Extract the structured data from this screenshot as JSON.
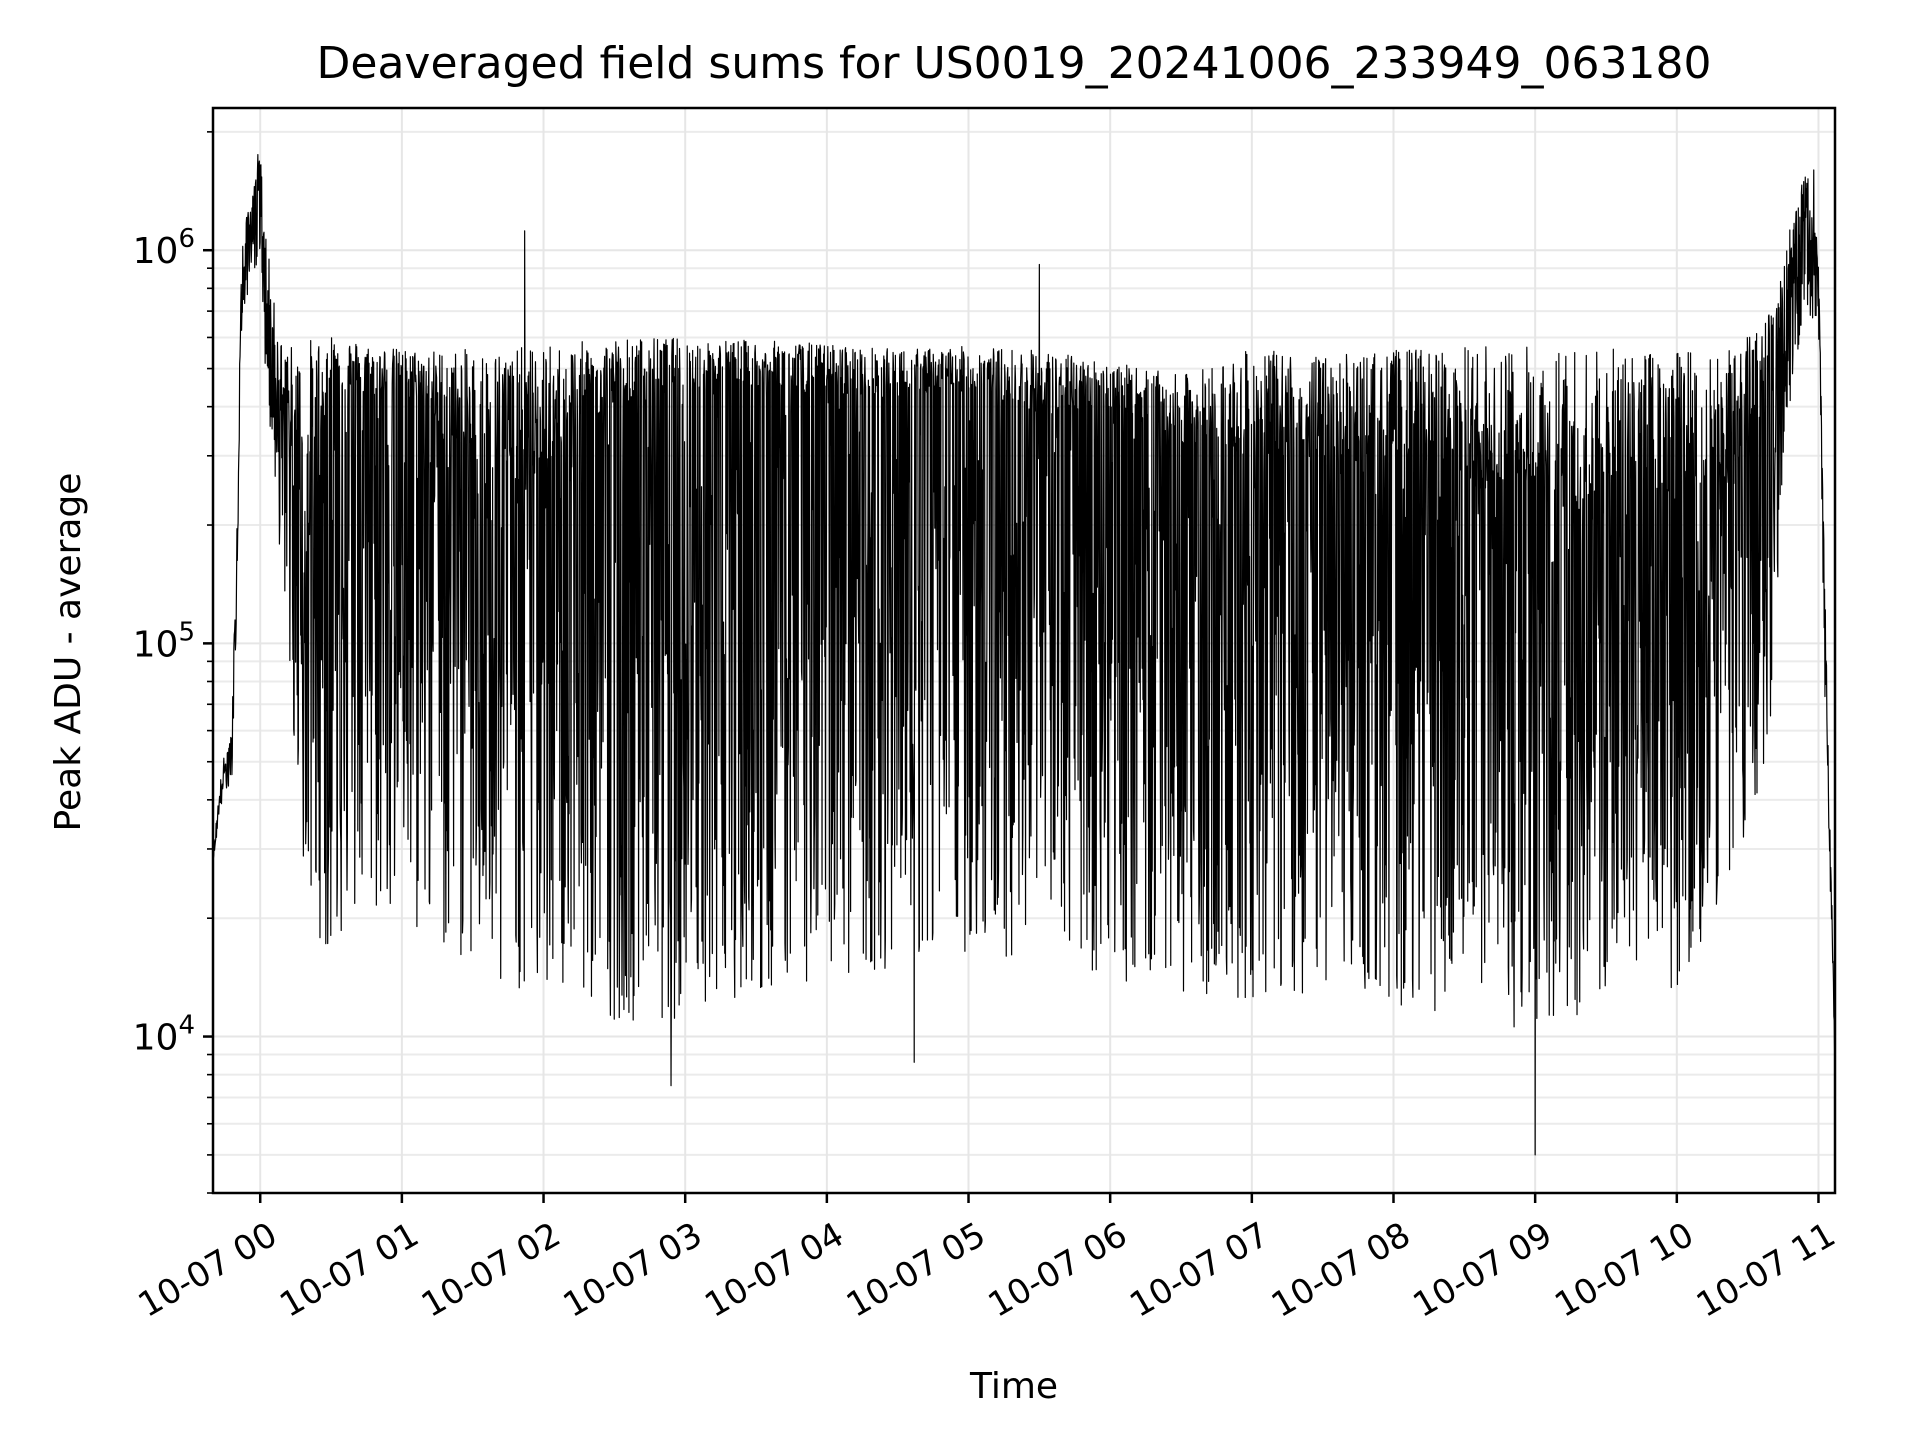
{
  "chart_data": {
    "type": "line",
    "title": "Deaveraged field sums for US0019_20241006_233949_063180",
    "xlabel": "Time",
    "ylabel": "Peak ADU - average",
    "yscale": "log",
    "ylim": [
      4000,
      2300000
    ],
    "xlim": [
      "2024-10-06 23:40",
      "2024-10-07 11:07"
    ],
    "x_tick_labels": [
      "10-07 00",
      "10-07 01",
      "10-07 02",
      "10-07 03",
      "10-07 04",
      "10-07 05",
      "10-07 06",
      "10-07 07",
      "10-07 08",
      "10-07 09",
      "10-07 10",
      "10-07 11"
    ],
    "y_tick_labels": [
      {
        "base": "10",
        "exp": "4"
      },
      {
        "base": "10",
        "exp": "5"
      },
      {
        "base": "10",
        "exp": "6"
      }
    ],
    "grid": true,
    "line_color": "#000000",
    "series": [
      {
        "x": [
          "2024-10-06 23:40",
          "2024-10-06 23:44",
          "2024-10-06 23:48",
          "2024-10-06 23:50",
          "2024-10-06 23:52",
          "2024-10-06 23:55",
          "2024-10-06 23:58",
          "2024-10-07 00:00",
          "2024-10-07 00:02",
          "2024-10-07 00:05",
          "2024-10-07 00:08",
          "2024-10-07 00:12",
          "2024-10-07 00:15",
          "2024-10-07 00:20",
          "2024-10-07 00:30",
          "2024-10-07 00:45",
          "2024-10-07 01:00",
          "2024-10-07 01:30",
          "2024-10-07 02:00",
          "2024-10-07 02:30",
          "2024-10-07 03:00",
          "2024-10-07 03:30",
          "2024-10-07 04:00",
          "2024-10-07 04:30",
          "2024-10-07 05:00",
          "2024-10-07 05:30",
          "2024-10-07 06:00",
          "2024-10-07 06:30",
          "2024-10-07 07:00",
          "2024-10-07 07:30",
          "2024-10-07 08:00",
          "2024-10-07 08:30",
          "2024-10-07 09:00",
          "2024-10-07 09:30",
          "2024-10-07 10:00",
          "2024-10-07 10:30",
          "2024-10-07 10:40",
          "2024-10-07 10:45",
          "2024-10-07 10:50",
          "2024-10-07 10:55",
          "2024-10-07 11:00",
          "2024-10-07 11:02",
          "2024-10-07 11:04",
          "2024-10-07 11:07"
        ],
        "y": [
          28000,
          45000,
          55000,
          150000,
          750000,
          1100000,
          1300000,
          1700000,
          900000,
          600000,
          450000,
          350000,
          250000,
          200000,
          450000,
          420000,
          440000,
          300000,
          280000,
          400000,
          420000,
          440000,
          430000,
          420000,
          440000,
          380000,
          400000,
          320000,
          300000,
          280000,
          300000,
          250000,
          220000,
          200000,
          230000,
          280000,
          450000,
          650000,
          1000000,
          1250000,
          900000,
          200000,
          55000,
          9000
        ],
        "upper_band": [
          30000,
          50000,
          60000,
          200000,
          1000000,
          1300000,
          1500000,
          1750000,
          1200000,
          800000,
          600000,
          600000,
          550000,
          600000,
          620000,
          580000,
          560000,
          560000,
          570000,
          600000,
          600000,
          590000,
          580000,
          560000,
          570000,
          560000,
          520000,
          480000,
          560000,
          540000,
          560000,
          570000,
          580000,
          560000,
          560000,
          600000,
          700000,
          1000000,
          1300000,
          1600000,
          1000000,
          220000,
          60000,
          10000
        ],
        "lower_band": [
          28000,
          40000,
          45000,
          120000,
          600000,
          800000,
          900000,
          1000000,
          500000,
          300000,
          180000,
          100000,
          40000,
          20000,
          16000,
          20000,
          18000,
          15000,
          12000,
          11000,
          11000,
          13000,
          14000,
          15000,
          16000,
          16000,
          14000,
          13000,
          12000,
          13000,
          12000,
          11000,
          10000,
          12000,
          13000,
          30000,
          60000,
          300000,
          500000,
          700000,
          600000,
          100000,
          40000,
          8000
        ],
        "notable_points": [
          {
            "x": "2024-10-06 23:59",
            "y": 1750000
          },
          {
            "x": "2024-10-07 01:52",
            "y": 1120000
          },
          {
            "x": "2024-10-07 02:54",
            "y": 7500
          },
          {
            "x": "2024-10-07 04:37",
            "y": 8600
          },
          {
            "x": "2024-10-07 05:30",
            "y": 920000
          },
          {
            "x": "2024-10-07 09:00",
            "y": 5000
          },
          {
            "x": "2024-10-07 10:58",
            "y": 1600000
          }
        ]
      }
    ]
  }
}
